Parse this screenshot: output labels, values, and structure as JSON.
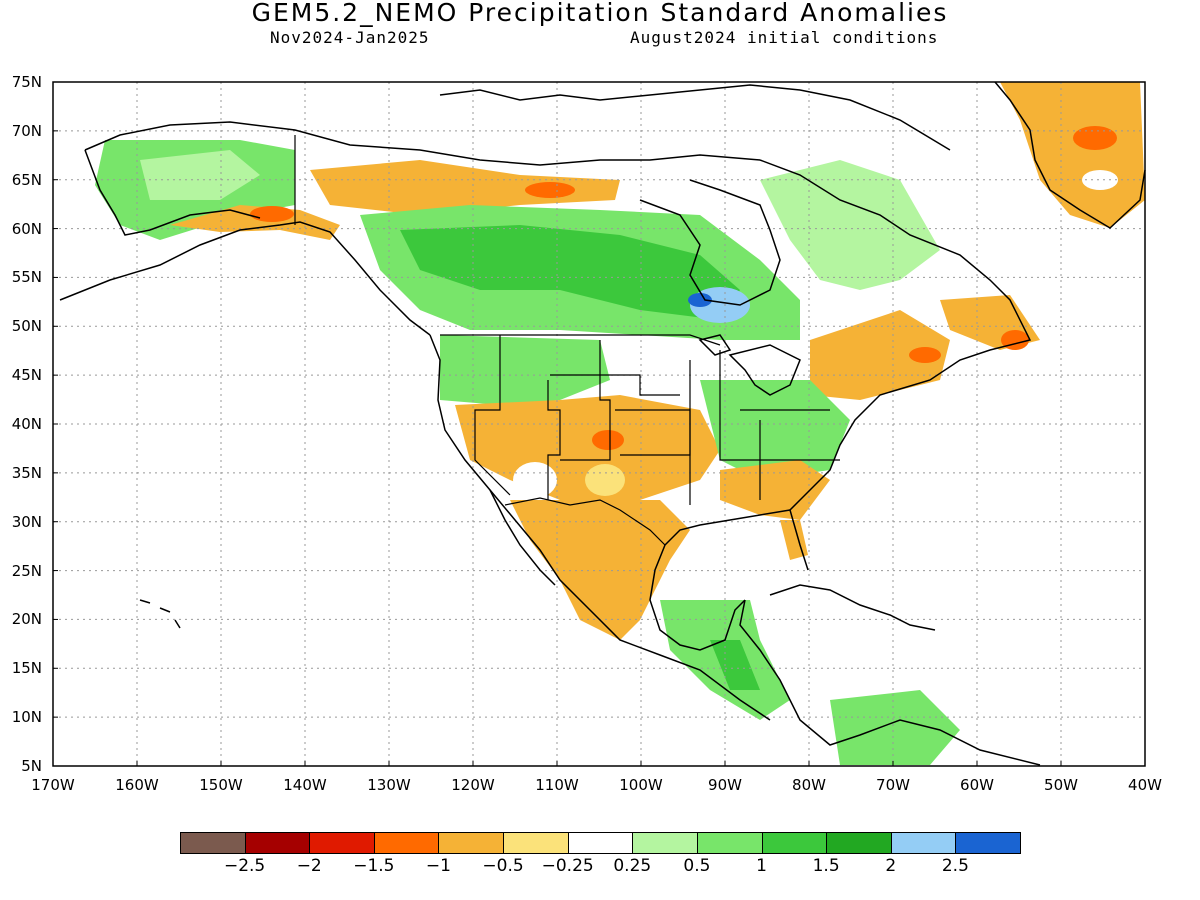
{
  "title": "GEM5.2_NEMO Precipitation Standard Anomalies",
  "subtitle_left": "Nov2024-Jan2025",
  "subtitle_right": "August2024 initial conditions",
  "map": {
    "lat_labels": [
      "75N",
      "70N",
      "65N",
      "60N",
      "55N",
      "50N",
      "45N",
      "40N",
      "35N",
      "30N",
      "25N",
      "20N",
      "15N",
      "10N",
      "5N"
    ],
    "lon_labels": [
      "170W",
      "160W",
      "150W",
      "140W",
      "130W",
      "120W",
      "110W",
      "100W",
      "90W",
      "80W",
      "70W",
      "60W",
      "50W",
      "40W"
    ],
    "lat_range": [
      5,
      75
    ],
    "lon_range": [
      -170,
      -40
    ],
    "grid": "dotted"
  },
  "legend": {
    "labels": [
      "-2.5",
      "-2",
      "-1.5",
      "-1",
      "-0.5",
      "-0.25",
      "0.25",
      "0.5",
      "1",
      "1.5",
      "2",
      "2.5"
    ],
    "colors": [
      "#7b5a4e",
      "#a50000",
      "#e01a00",
      "#ff6a00",
      "#f5b236",
      "#fbe27a",
      "#ffffff",
      "#b4f5a0",
      "#78e56a",
      "#3cc83c",
      "#22a822",
      "#94cdf5",
      "#1a64d2"
    ]
  }
}
